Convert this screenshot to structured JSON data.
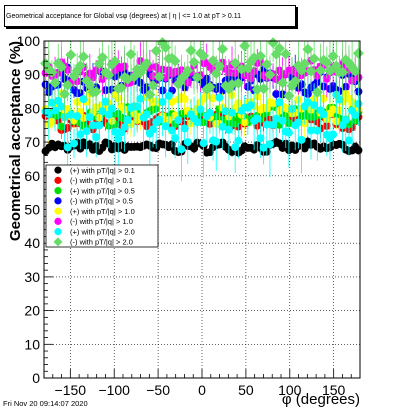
{
  "title": "Geometrical acceptance for Global vsφ (degrees) at | η | <= 1.0 at pT > 0.11",
  "timestamp": "Fri Nov 20 09:14:07 2020",
  "chart_data": {
    "type": "scatter",
    "title": "Geometrical acceptance for Global vsφ (degrees) at | η | <= 1.0 at pT > 0.11",
    "xlabel": "φ (degrees)",
    "ylabel": "Geometrical acceptance (%)",
    "xlim": [
      -180,
      180
    ],
    "ylim": [
      0,
      100
    ],
    "xticks": [
      -150,
      -100,
      -50,
      0,
      50,
      100,
      150
    ],
    "yticks": [
      0,
      10,
      20,
      30,
      40,
      50,
      60,
      70,
      80,
      90,
      100
    ],
    "grid": true,
    "legend_position": "middle-left",
    "series": [
      {
        "name": "(+) with pT/|q| > 0.1",
        "color": "#000000",
        "marker": "circle",
        "mean": 68.5,
        "spread": 1.2,
        "error": 1.0
      },
      {
        "name": "(-) with pT/|q| > 0.1",
        "color": "#ff0000",
        "marker": "circle",
        "mean": 76,
        "spread": 1.8,
        "error": 2.0
      },
      {
        "name": "(+) with pT/|q| > 0.5",
        "color": "#00dd00",
        "marker": "circle",
        "mean": 77.5,
        "spread": 2.5,
        "error": 3.0
      },
      {
        "name": "(-) with pT/|q| > 0.5",
        "color": "#0000ff",
        "marker": "circle",
        "mean": 88,
        "spread": 3.0,
        "error": 3.0
      },
      {
        "name": "(+) with pT/|q| > 1.0",
        "color": "#ffff00",
        "marker": "circle",
        "mean": 80,
        "spread": 3.5,
        "error": 4.0
      },
      {
        "name": "(-) with pT/|q| > 1.0",
        "color": "#ff00ff",
        "marker": "circle",
        "mean": 91,
        "spread": 2.5,
        "error": 4.0
      },
      {
        "name": "(+) with pT/|q| > 2.0",
        "color": "#00ffff",
        "marker": "circle",
        "mean": 76,
        "spread": 6.0,
        "error": 7.0
      },
      {
        "name": "(-) with pT/|q| > 2.0",
        "color": "#66dd66",
        "marker": "diamond",
        "mean": 92,
        "spread": 6.0,
        "error": 7.0
      }
    ]
  }
}
